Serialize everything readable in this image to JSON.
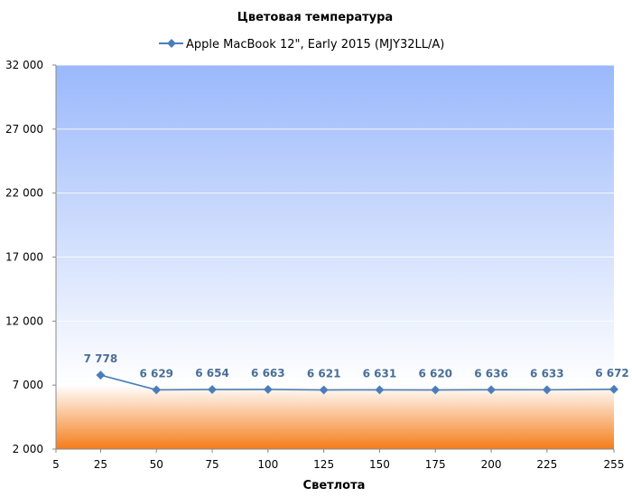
{
  "chart_data": {
    "type": "line",
    "title": "Цветовая температура",
    "xlabel": "Светлота",
    "ylabel": "",
    "xlim": [
      5,
      255
    ],
    "ylim": [
      2000,
      32000
    ],
    "x_ticks": [
      5,
      25,
      50,
      75,
      100,
      125,
      150,
      175,
      200,
      225,
      255
    ],
    "x_tick_labels": [
      "5",
      "25",
      "50",
      "75",
      "100",
      "125",
      "150",
      "175",
      "200",
      "225",
      "255"
    ],
    "y_ticks": [
      2000,
      7000,
      12000,
      17000,
      22000,
      27000,
      32000
    ],
    "y_tick_labels": [
      "2 000",
      "7 000",
      "12 000",
      "17 000",
      "22 000",
      "27 000",
      "32 000"
    ],
    "legend_position": "top",
    "series": [
      {
        "name": "Apple MacBook 12\", Early 2015 (MJY32LL/A)",
        "color": "#4a7ebb",
        "x": [
          25,
          50,
          75,
          100,
          125,
          150,
          175,
          200,
          225,
          255
        ],
        "values": [
          7778,
          6629,
          6654,
          6663,
          6621,
          6631,
          6620,
          6636,
          6633,
          6672
        ],
        "labels": [
          "7 778",
          "6 629",
          "6 654",
          "6 663",
          "6 621",
          "6 631",
          "6 620",
          "6 636",
          "6 633",
          "6 672"
        ]
      }
    ],
    "background": {
      "top_color": "#9ab8fb",
      "mid_color": "#ffffff",
      "bottom_color": "#f47d1a",
      "split_value": 7000
    }
  }
}
